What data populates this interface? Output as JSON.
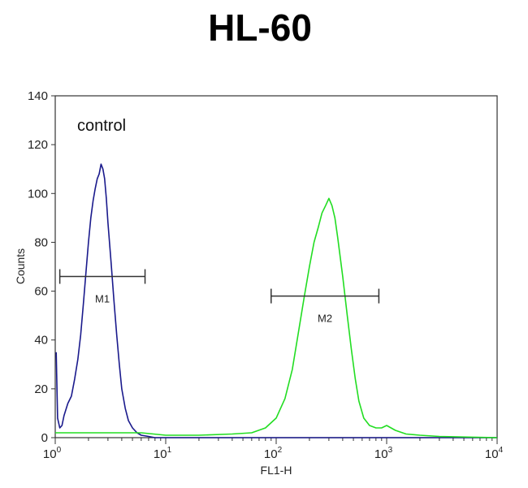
{
  "chart_data": {
    "type": "line",
    "title": "HL-60",
    "xlabel": "FL1-H",
    "ylabel": "Counts",
    "xscale": "log",
    "xlim": [
      1,
      10000
    ],
    "ylim": [
      0,
      140
    ],
    "x_ticks": [
      {
        "base": "10",
        "exp": "0",
        "value": 1
      },
      {
        "base": "10",
        "exp": "1",
        "value": 10
      },
      {
        "base": "10",
        "exp": "2",
        "value": 100
      },
      {
        "base": "10",
        "exp": "3",
        "value": 1000
      },
      {
        "base": "10",
        "exp": "4",
        "value": 10000
      }
    ],
    "y_ticks": [
      "0",
      "20",
      "40",
      "60",
      "80",
      "100",
      "120",
      "140"
    ],
    "annotation": "control",
    "grid": false,
    "series": [
      {
        "color": "#1a1a8c",
        "x": [
          1.02,
          1.05,
          1.1,
          1.15,
          1.2,
          1.3,
          1.4,
          1.5,
          1.6,
          1.7,
          1.8,
          1.9,
          2.0,
          2.1,
          2.2,
          2.3,
          2.4,
          2.5,
          2.6,
          2.7,
          2.8,
          2.9,
          3.0,
          3.2,
          3.4,
          3.6,
          3.8,
          4.0,
          4.3,
          4.6,
          5.0,
          5.5,
          6.0,
          7.0,
          8.0,
          10,
          20,
          50,
          100,
          1000,
          10000
        ],
        "y": [
          35,
          8,
          4,
          5,
          9,
          14,
          17,
          24,
          32,
          42,
          55,
          68,
          80,
          90,
          97,
          102,
          106,
          108,
          112,
          110,
          106,
          98,
          88,
          72,
          56,
          42,
          30,
          20,
          12,
          7,
          4,
          2,
          1,
          0.5,
          0,
          0,
          0,
          0,
          0,
          0,
          0
        ]
      },
      {
        "color": "#22dd22",
        "x": [
          1,
          3,
          6,
          10,
          20,
          40,
          60,
          80,
          100,
          120,
          140,
          160,
          180,
          200,
          220,
          240,
          260,
          280,
          300,
          320,
          340,
          360,
          400,
          440,
          480,
          520,
          560,
          620,
          700,
          800,
          900,
          1000,
          1200,
          1500,
          2000,
          3000,
          10000
        ],
        "y": [
          2,
          2,
          2,
          1,
          1,
          1.5,
          2,
          4,
          8,
          16,
          28,
          44,
          58,
          70,
          80,
          86,
          92,
          95,
          98,
          95,
          90,
          82,
          66,
          50,
          36,
          24,
          15,
          8,
          5,
          4,
          4,
          5,
          3,
          1.5,
          1,
          0.5,
          0
        ]
      }
    ],
    "markers": [
      {
        "label": "M1",
        "x_start": 1.1,
        "x_end": 6.5,
        "y": 66
      },
      {
        "label": "M2",
        "x_start": 90,
        "x_end": 850,
        "y": 58
      }
    ]
  }
}
